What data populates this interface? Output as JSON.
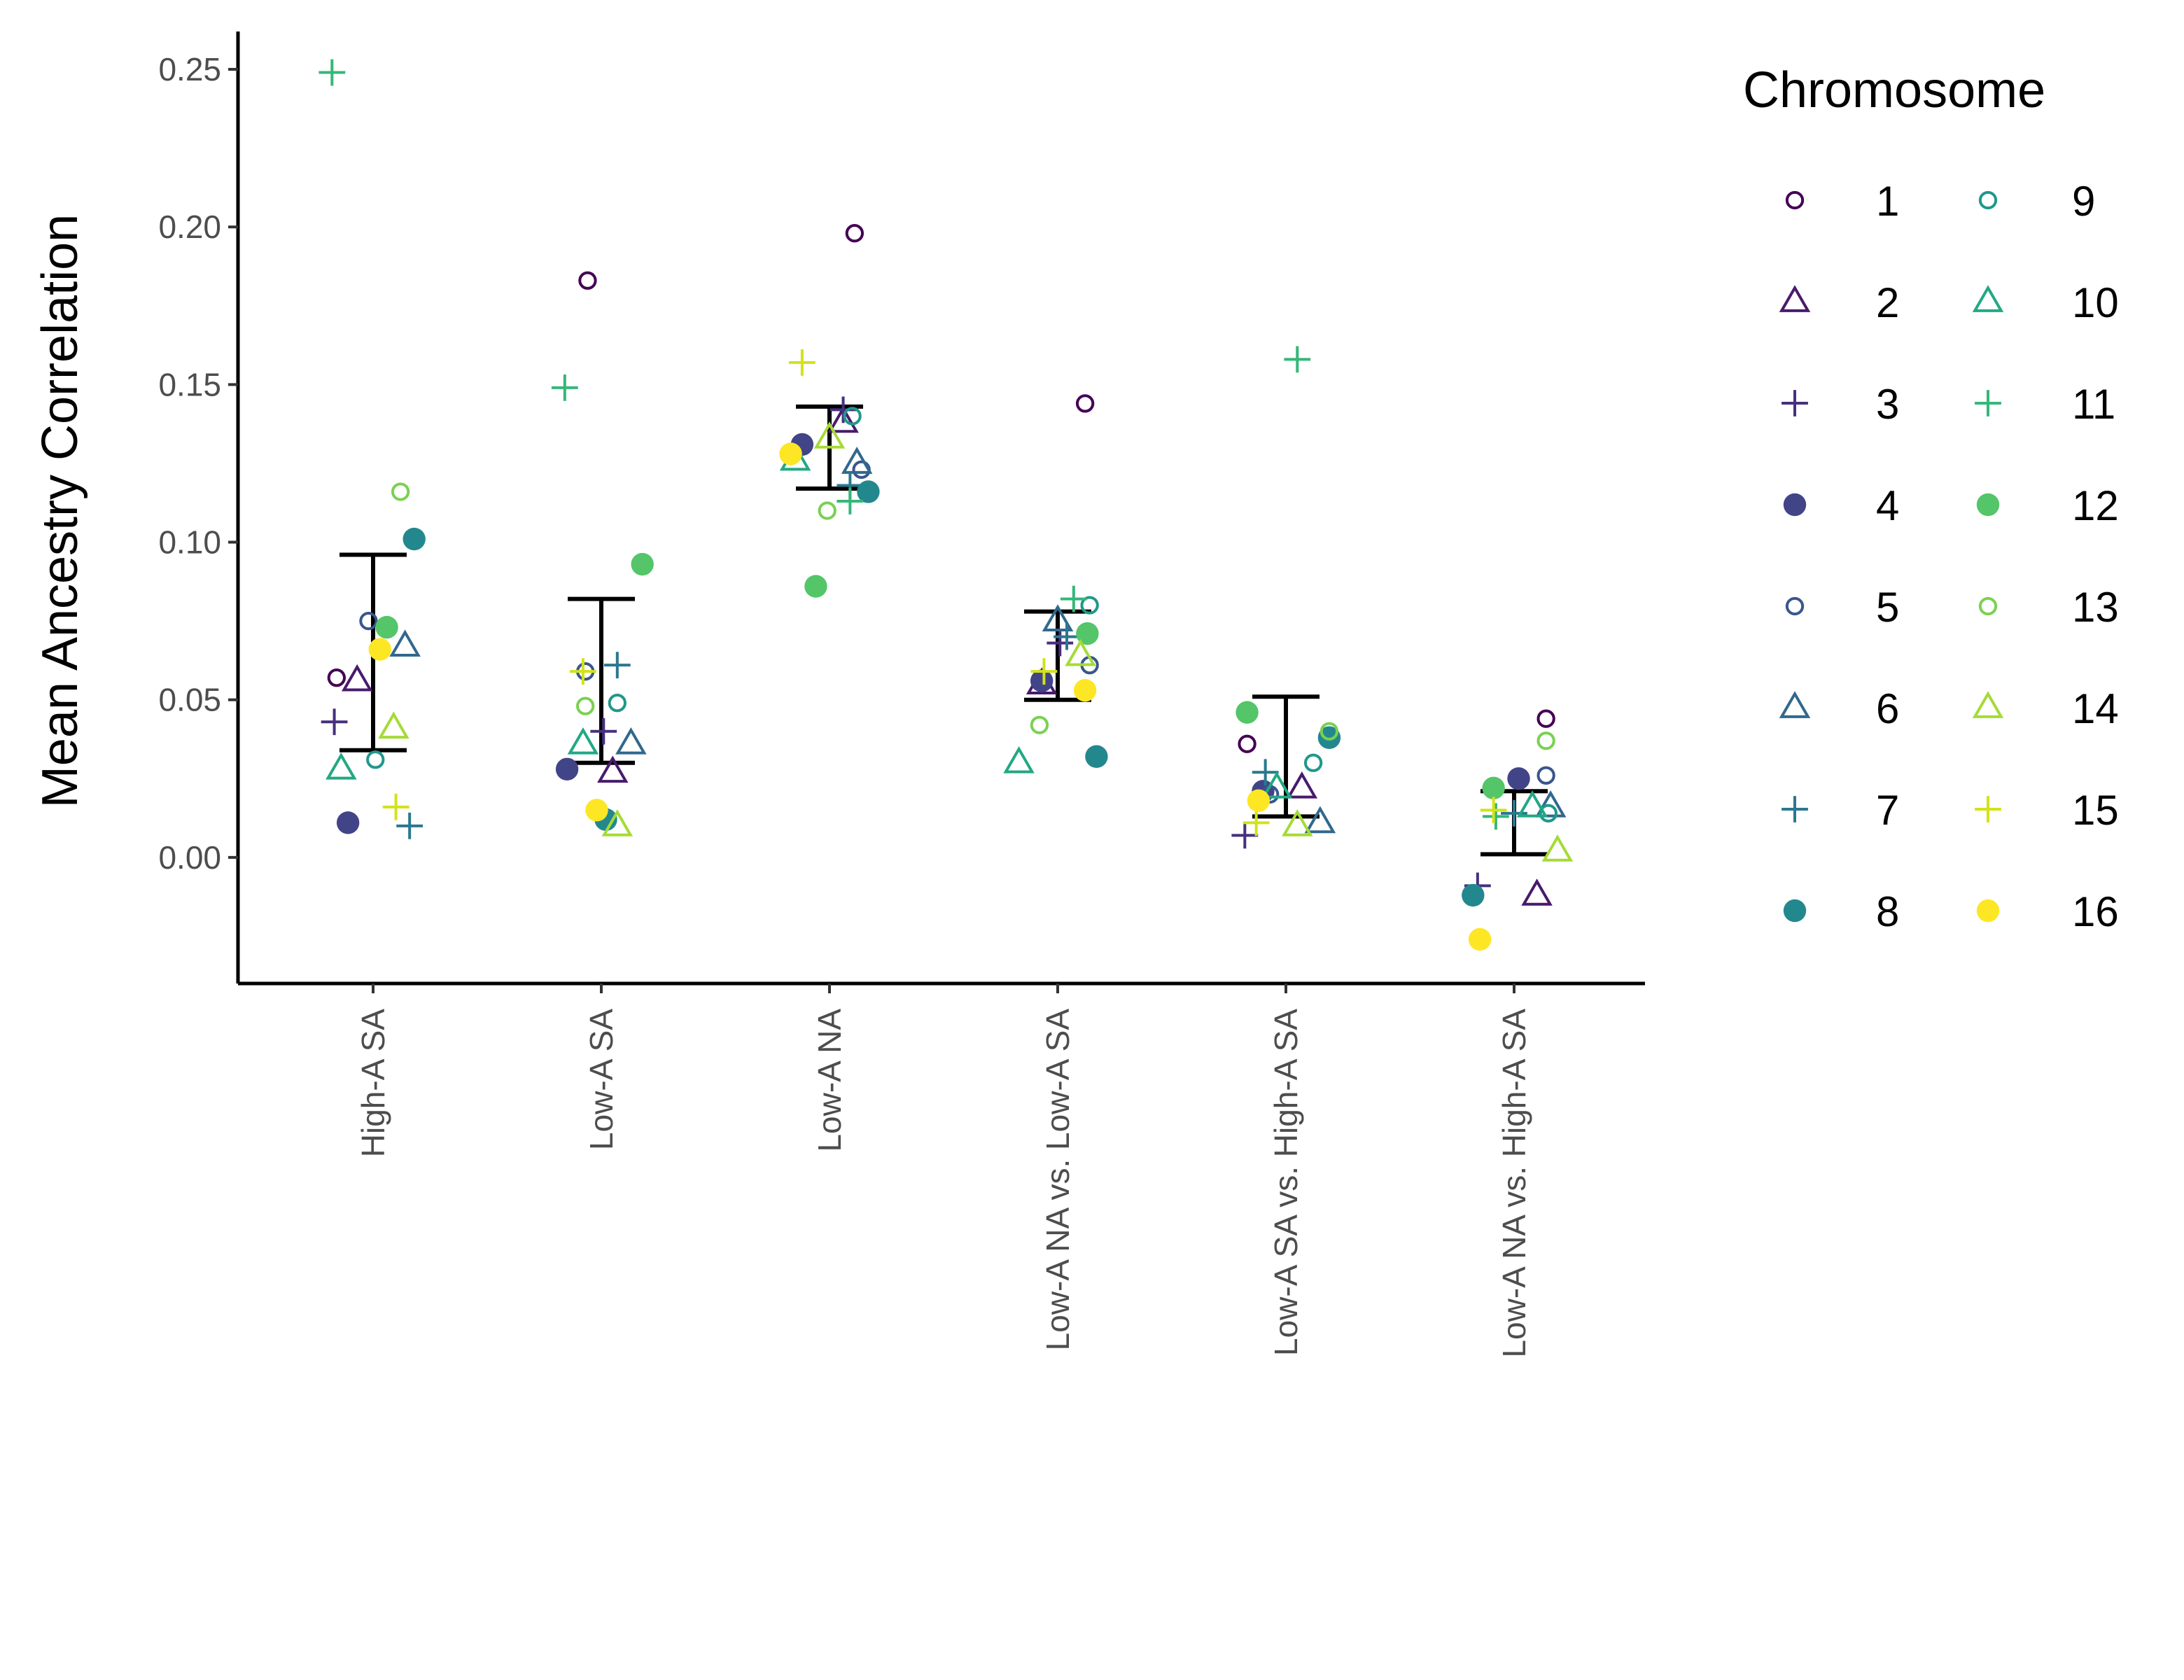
{
  "chart_data": {
    "type": "scatter",
    "title": "",
    "xlabel": "",
    "ylabel": "Mean Ancestry Correlation",
    "ylim": [
      -0.04,
      0.262
    ],
    "yticks": [
      0.0,
      0.05,
      0.1,
      0.15,
      0.2,
      0.25
    ],
    "ytick_labels": [
      "0.00",
      "0.05",
      "0.10",
      "0.15",
      "0.20",
      "0.25"
    ],
    "categories": [
      "High-A SA",
      "Low-A SA",
      "Low-A NA",
      "Low-A NA vs. Low-A SA",
      "Low-A SA vs. High-A SA",
      "Low-A NA vs. High-A SA"
    ],
    "grid": false,
    "legend": {
      "title": "Chromosome",
      "position": "right",
      "columns": 2,
      "entries": [
        "1",
        "2",
        "3",
        "4",
        "5",
        "6",
        "7",
        "8",
        "9",
        "10",
        "11",
        "12",
        "13",
        "14",
        "15",
        "16"
      ]
    },
    "series_style": [
      {
        "name": "1",
        "shape": "open-circle",
        "color": "#440154"
      },
      {
        "name": "2",
        "shape": "open-triangle",
        "color": "#481A6C"
      },
      {
        "name": "3",
        "shape": "plus",
        "color": "#472F7D"
      },
      {
        "name": "4",
        "shape": "filled-circle",
        "color": "#414487"
      },
      {
        "name": "5",
        "shape": "open-circle",
        "color": "#39568C"
      },
      {
        "name": "6",
        "shape": "open-triangle",
        "color": "#31688E"
      },
      {
        "name": "7",
        "shape": "plus",
        "color": "#2A788E"
      },
      {
        "name": "8",
        "shape": "filled-circle",
        "color": "#23888E"
      },
      {
        "name": "9",
        "shape": "open-circle",
        "color": "#1F988B"
      },
      {
        "name": "10",
        "shape": "open-triangle",
        "color": "#22A884"
      },
      {
        "name": "11",
        "shape": "plus",
        "color": "#35B779"
      },
      {
        "name": "12",
        "shape": "filled-circle",
        "color": "#54C568"
      },
      {
        "name": "13",
        "shape": "open-circle",
        "color": "#7AD151"
      },
      {
        "name": "14",
        "shape": "open-triangle",
        "color": "#A5DB36"
      },
      {
        "name": "15",
        "shape": "plus",
        "color": "#D2E21B"
      },
      {
        "name": "16",
        "shape": "filled-circle",
        "color": "#FDE725"
      }
    ],
    "series": [
      {
        "name": "1",
        "values": [
          0.057,
          0.183,
          0.198,
          0.144,
          0.036,
          0.044
        ]
      },
      {
        "name": "2",
        "values": [
          0.056,
          0.027,
          0.138,
          0.055,
          0.022,
          -0.012
        ]
      },
      {
        "name": "3",
        "values": [
          0.043,
          0.04,
          0.142,
          0.068,
          0.007,
          -0.009
        ]
      },
      {
        "name": "4",
        "values": [
          0.011,
          0.028,
          0.131,
          0.056,
          0.021,
          0.025
        ]
      },
      {
        "name": "5",
        "values": [
          0.075,
          0.059,
          0.123,
          0.061,
          0.02,
          0.026
        ]
      },
      {
        "name": "6",
        "values": [
          0.067,
          0.036,
          0.125,
          0.075,
          0.011,
          0.016
        ]
      },
      {
        "name": "7",
        "values": [
          0.01,
          0.061,
          0.118,
          0.07,
          0.027,
          0.014
        ]
      },
      {
        "name": "8",
        "values": [
          0.101,
          0.012,
          0.116,
          0.032,
          0.038,
          -0.012
        ]
      },
      {
        "name": "9",
        "values": [
          0.031,
          0.049,
          0.14,
          0.08,
          0.03,
          0.014
        ]
      },
      {
        "name": "10",
        "values": [
          0.028,
          0.036,
          0.126,
          0.03,
          0.022,
          0.016
        ]
      },
      {
        "name": "11",
        "values": [
          0.249,
          0.149,
          0.113,
          0.082,
          0.158,
          0.013
        ]
      },
      {
        "name": "12",
        "values": [
          0.073,
          0.093,
          0.086,
          0.071,
          0.046,
          0.022
        ]
      },
      {
        "name": "13",
        "values": [
          0.116,
          0.048,
          0.11,
          0.042,
          0.04,
          0.037
        ]
      },
      {
        "name": "14",
        "values": [
          0.041,
          0.01,
          0.133,
          0.064,
          0.01,
          0.002
        ]
      },
      {
        "name": "15",
        "values": [
          0.016,
          0.059,
          0.157,
          0.059,
          0.011,
          0.015
        ]
      },
      {
        "name": "16",
        "values": [
          0.066,
          0.015,
          0.128,
          0.053,
          0.018,
          -0.026
        ]
      }
    ],
    "error_bars": [
      {
        "category": "High-A SA",
        "mean": 0.067,
        "low": 0.034,
        "high": 0.096
      },
      {
        "category": "Low-A SA",
        "mean": 0.056,
        "low": 0.03,
        "high": 0.082
      },
      {
        "category": "Low-A NA",
        "mean": 0.13,
        "low": 0.117,
        "high": 0.143
      },
      {
        "category": "Low-A NA vs. Low-A SA",
        "mean": 0.064,
        "low": 0.05,
        "high": 0.078
      },
      {
        "category": "Low-A SA vs. High-A SA",
        "mean": 0.032,
        "low": 0.013,
        "high": 0.051
      },
      {
        "category": "Low-A NA vs. High-A SA",
        "mean": 0.011,
        "low": 0.001,
        "high": 0.021
      }
    ],
    "x_jitter": [
      [
        -0.16,
        -0.07,
        -0.17,
        -0.11,
        -0.02,
        0.14,
        0.16,
        0.18,
        0.01,
        -0.14,
        -0.18,
        0.06,
        0.12,
        0.09,
        0.1,
        0.03
      ],
      [
        -0.06,
        0.05,
        0.01,
        -0.15,
        -0.07,
        0.13,
        0.07,
        0.02,
        0.07,
        -0.08,
        -0.16,
        0.18,
        -0.07,
        0.07,
        -0.08,
        -0.02
      ],
      [
        0.11,
        0.06,
        0.06,
        -0.12,
        0.14,
        0.12,
        0.09,
        0.17,
        0.1,
        -0.15,
        0.09,
        -0.06,
        -0.01,
        0.0,
        -0.12,
        -0.17
      ],
      [
        0.12,
        -0.07,
        0.01,
        -0.07,
        0.14,
        0.0,
        0.04,
        0.17,
        0.14,
        -0.17,
        0.07,
        0.13,
        -0.08,
        0.1,
        -0.06,
        0.12
      ],
      [
        -0.17,
        0.07,
        -0.18,
        -0.1,
        -0.07,
        0.15,
        -0.09,
        0.19,
        0.12,
        -0.04,
        0.05,
        -0.17,
        0.19,
        0.05,
        -0.13,
        -0.12
      ],
      [
        0.14,
        0.1,
        -0.16,
        0.02,
        0.14,
        0.16,
        0.0,
        -0.18,
        0.15,
        0.08,
        -0.08,
        -0.09,
        0.14,
        0.19,
        -0.09,
        -0.15
      ]
    ]
  }
}
